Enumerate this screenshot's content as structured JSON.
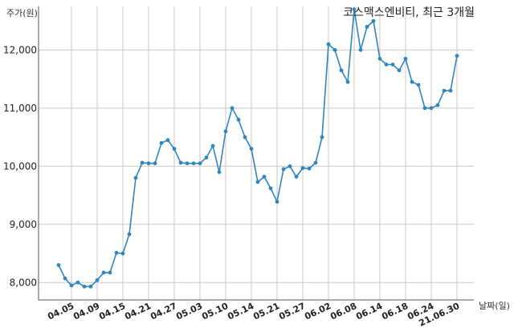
{
  "chart_data": {
    "type": "line",
    "title": "코스맥스엔비티, 최근 3개월",
    "ylabel": "주가(원)",
    "xlabel": "날짜(일)",
    "ylim": [
      7700,
      12750
    ],
    "y_ticks": [
      8000,
      9000,
      10000,
      11000,
      12000
    ],
    "y_tick_labels": [
      "8,000",
      "9,000",
      "10,000",
      "11,000",
      "12,000"
    ],
    "x_tick_labels": [
      "04.05",
      "04.09",
      "04.15",
      "04.21",
      "04.27",
      "05.03",
      "05.10",
      "05.14",
      "05.21",
      "05.27",
      "06.02",
      "06.08",
      "06.14",
      "06.18",
      "06.24",
      "21.06.30"
    ],
    "x_tick_index": [
      2,
      6,
      10,
      14,
      18,
      22,
      26,
      30,
      34,
      38,
      42,
      46,
      50,
      54,
      58,
      62
    ],
    "grid": true,
    "line_color": "#2e86c1",
    "series": [
      {
        "values": [
          8300,
          8070,
          7950,
          8000,
          7930,
          7930,
          8040,
          8170,
          8170,
          8510,
          8500,
          8830,
          9800,
          10060,
          10050,
          10050,
          10400,
          10450,
          10300,
          10060,
          10050,
          10050,
          10050,
          10150,
          10350,
          9900,
          10600,
          11000,
          10800,
          10500,
          10300,
          9730,
          9820,
          9620,
          9390,
          9950,
          10000,
          9820,
          9970,
          9960,
          10060,
          10500,
          12100,
          12000,
          11650,
          11450,
          12700,
          12000,
          12400,
          12500,
          11850,
          11750,
          11750,
          11650,
          11850,
          11450,
          11400,
          11000,
          11000,
          11050,
          11300,
          11300,
          11900
        ]
      }
    ]
  }
}
